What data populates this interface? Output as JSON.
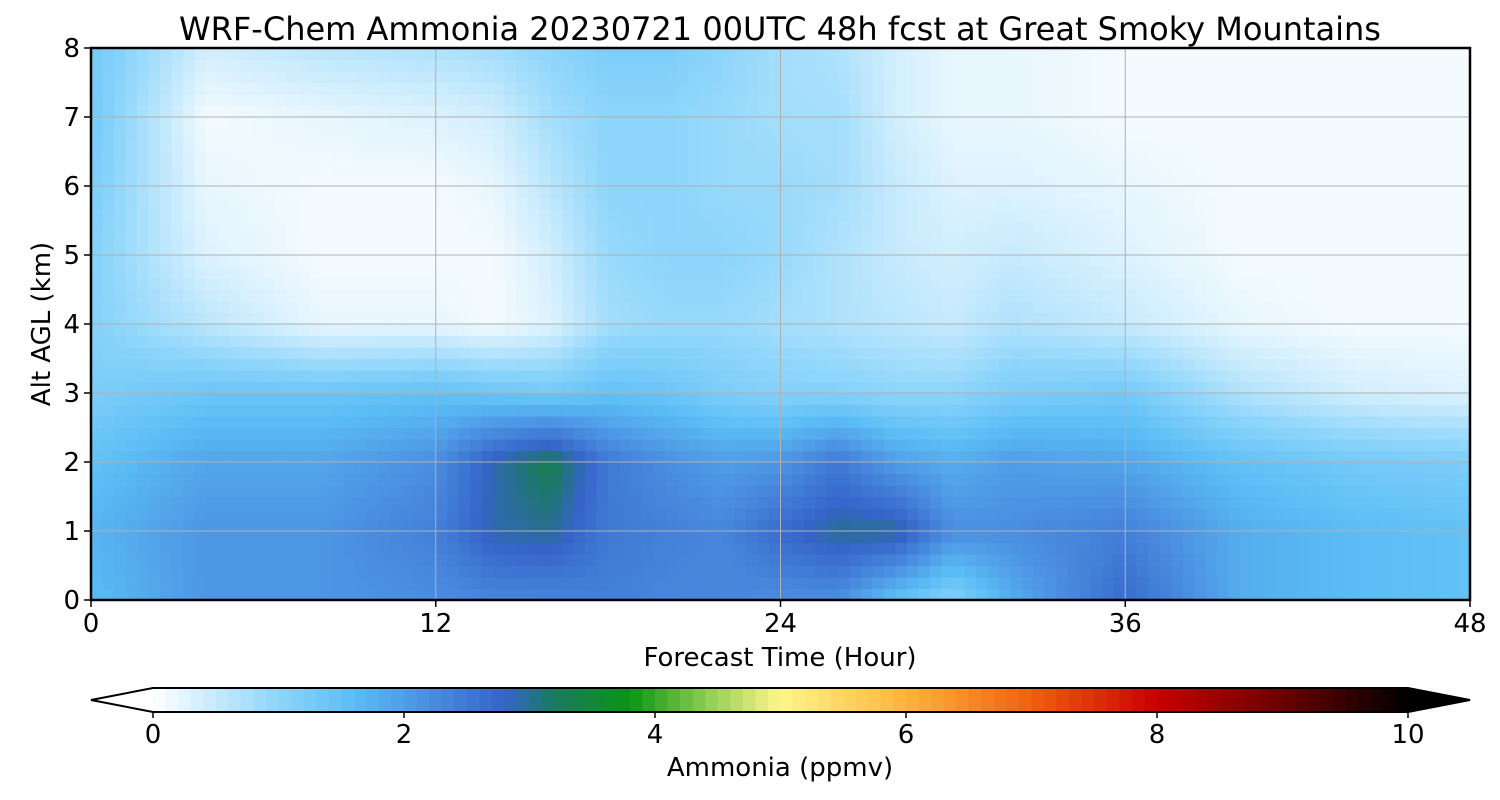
{
  "chart_data": {
    "type": "heatmap",
    "title": "WRF-Chem Ammonia  20230721 00UTC 48h fcst at Great Smoky Mountains",
    "xlabel": "Forecast Time (Hour)",
    "ylabel": "Alt AGL (km)",
    "xlim": [
      0,
      48
    ],
    "ylim": [
      0,
      8
    ],
    "xticks": [
      "0",
      "12",
      "24",
      "36",
      "48"
    ],
    "yticks": [
      "0",
      "1",
      "2",
      "3",
      "4",
      "5",
      "6",
      "7",
      "8"
    ],
    "grid": true,
    "x": [
      0,
      4,
      8,
      12,
      14,
      16,
      18,
      20,
      22,
      24,
      26,
      28,
      30,
      32,
      36,
      40,
      44,
      48
    ],
    "y": [
      0,
      1,
      2,
      3,
      4,
      5,
      6,
      7,
      8
    ],
    "z": [
      [
        1.6,
        2.1,
        2.1,
        2.2,
        2.3,
        2.3,
        2.4,
        2.3,
        2.3,
        2.2,
        2.2,
        1.5,
        1.1,
        1.8,
        2.7,
        1.8,
        1.6,
        1.5
      ],
      [
        1.7,
        2.1,
        2.1,
        2.4,
        2.9,
        3.0,
        2.5,
        2.4,
        2.3,
        2.7,
        3.0,
        3.0,
        2.2,
        2.2,
        2.4,
        1.8,
        1.6,
        1.5
      ],
      [
        1.5,
        1.9,
        1.9,
        2.2,
        2.9,
        3.3,
        2.5,
        2.2,
        2.0,
        2.1,
        2.5,
        2.0,
        1.8,
        2.0,
        1.9,
        1.5,
        1.3,
        1.2
      ],
      [
        1.2,
        1.4,
        1.4,
        1.5,
        1.4,
        1.3,
        1.5,
        1.4,
        1.2,
        1.1,
        1.1,
        1.0,
        1.0,
        1.2,
        1.3,
        0.7,
        0.4,
        0.3
      ],
      [
        1.1,
        0.6,
        0.2,
        0.2,
        0.1,
        0.3,
        0.8,
        0.9,
        0.9,
        0.8,
        0.7,
        0.6,
        0.5,
        0.7,
        0.5,
        0.2,
        0.1,
        0.1
      ],
      [
        1.1,
        0.3,
        0.1,
        0.1,
        0.1,
        0.4,
        0.9,
        1.0,
        1.0,
        0.9,
        0.7,
        0.5,
        0.4,
        0.5,
        0.3,
        0.1,
        0.1,
        0.1
      ],
      [
        1.2,
        0.2,
        0.1,
        0.1,
        0.2,
        0.6,
        1.0,
        1.0,
        0.9,
        0.9,
        0.8,
        0.5,
        0.3,
        0.3,
        0.2,
        0.1,
        0.1,
        0.1
      ],
      [
        1.3,
        0.1,
        0.2,
        0.3,
        0.4,
        0.8,
        1.0,
        1.0,
        0.9,
        0.8,
        0.8,
        0.4,
        0.2,
        0.2,
        0.1,
        0.1,
        0.1,
        0.1
      ],
      [
        1.3,
        0.4,
        0.6,
        0.7,
        0.8,
        1.0,
        1.2,
        1.2,
        1.0,
        0.8,
        0.7,
        0.4,
        0.2,
        0.2,
        0.1,
        0.1,
        0.1,
        0.1
      ]
    ],
    "colorbar": {
      "label": "Ammonia  (ppmv)",
      "min": 0,
      "max": 10,
      "ticks": [
        "0",
        "2",
        "4",
        "6",
        "8",
        "10"
      ],
      "extend": "both",
      "stops": [
        {
          "v": 0.0,
          "color": "#ffffff"
        },
        {
          "v": 1.0,
          "color": "#8dd5fb"
        },
        {
          "v": 1.6,
          "color": "#5bbdf5"
        },
        {
          "v": 2.2,
          "color": "#4a8ee0"
        },
        {
          "v": 2.8,
          "color": "#3564c9"
        },
        {
          "v": 3.2,
          "color": "#1a7a5e"
        },
        {
          "v": 3.8,
          "color": "#0a9414"
        },
        {
          "v": 4.4,
          "color": "#8ccc52"
        },
        {
          "v": 5.0,
          "color": "#fff68a"
        },
        {
          "v": 6.0,
          "color": "#fdb43c"
        },
        {
          "v": 7.0,
          "color": "#f06010"
        },
        {
          "v": 8.0,
          "color": "#c80000"
        },
        {
          "v": 9.0,
          "color": "#6a0000"
        },
        {
          "v": 10.0,
          "color": "#000000"
        }
      ],
      "under_color": "#ffffff",
      "over_color": "#000000"
    }
  }
}
